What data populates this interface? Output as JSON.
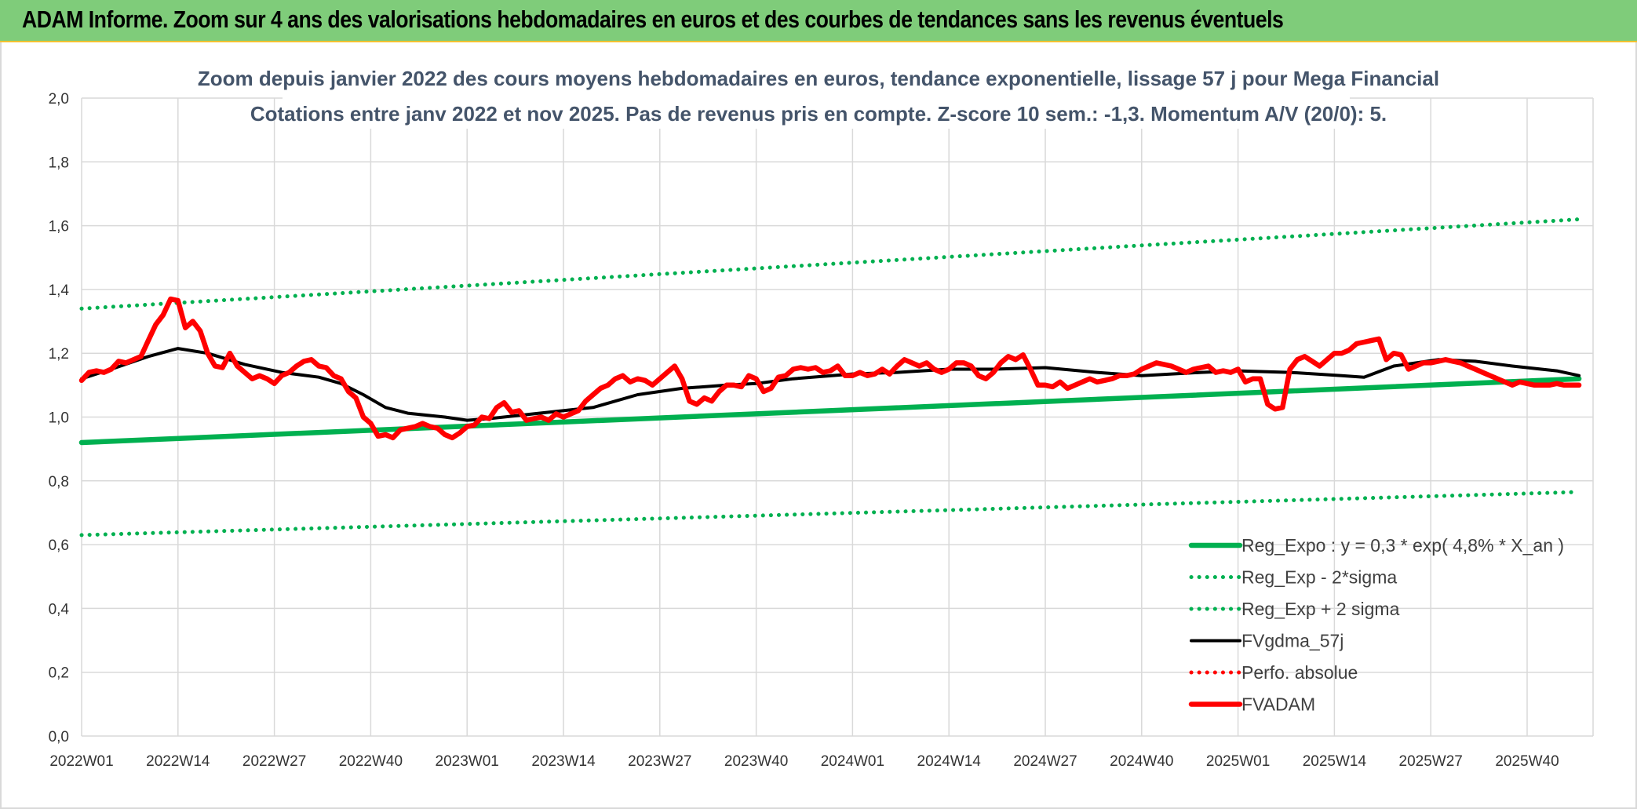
{
  "header": {
    "title": "ADAM Informe. Zoom sur 4 ans des valorisations hebdomadaires en euros et des courbes de tendances sans les revenus éventuels"
  },
  "chart_data": {
    "type": "line",
    "title": "Zoom depuis janvier 2022 des cours moyens hebdomadaires en euros, tendance exponentielle, lissage 57 j pour Mega Financial",
    "subtitle": "Cotations entre janv 2022 et nov 2025. Pas de revenus pris en compte. Z-score 10 sem.: -1,3. Momentum A/V (20/0): 5.",
    "xlabel": "",
    "ylabel": "",
    "ylim": [
      0,
      2
    ],
    "y_ticks": [
      "0,0",
      "0,2",
      "0,4",
      "0,6",
      "0,8",
      "1,0",
      "1,2",
      "1,4",
      "1,6",
      "1,8",
      "2,0"
    ],
    "x_ticks": [
      "2022W01",
      "2022W14",
      "2022W27",
      "2022W40",
      "2023W01",
      "2023W14",
      "2023W27",
      "2023W40",
      "2024W01",
      "2024W14",
      "2024W27",
      "2024W40",
      "2025W01",
      "2025W14",
      "2025W27",
      "2025W40"
    ],
    "x_range": [
      "2022W01",
      "2025W47"
    ],
    "grid": true,
    "legend_position": "bottom-right",
    "series": [
      {
        "name": "Reg_Expo : y = 0,3 * exp( 4,8% *  X_an )",
        "color": "#00b050",
        "style": "solid-thick",
        "points": [
          [
            "2022W01",
            0.92
          ],
          [
            "2025W47",
            1.12
          ]
        ]
      },
      {
        "name": "Reg_Exp - 2*sigma",
        "color": "#00b050",
        "style": "dotted",
        "points": [
          [
            "2022W01",
            0.63
          ],
          [
            "2025W47",
            0.765
          ]
        ]
      },
      {
        "name": "Reg_Exp + 2 sigma",
        "color": "#00b050",
        "style": "dotted",
        "points": [
          [
            "2022W01",
            1.34
          ],
          [
            "2025W47",
            1.62
          ]
        ]
      },
      {
        "name": "FVgdma_57j",
        "color": "#000000",
        "style": "solid",
        "points": [
          [
            "2022W01",
            1.12
          ],
          [
            "2022W05",
            1.15
          ],
          [
            "2022W10",
            1.19
          ],
          [
            "2022W14",
            1.215
          ],
          [
            "2022W18",
            1.2
          ],
          [
            "2022W23",
            1.165
          ],
          [
            "2022W28",
            1.14
          ],
          [
            "2022W33",
            1.125
          ],
          [
            "2022W36",
            1.105
          ],
          [
            "2022W39",
            1.07
          ],
          [
            "2022W42",
            1.03
          ],
          [
            "2022W45",
            1.012
          ],
          [
            "2022W50",
            1.0
          ],
          [
            "2023W01",
            0.99
          ],
          [
            "2023W04",
            0.995
          ],
          [
            "2023W10",
            1.01
          ],
          [
            "2023W18",
            1.03
          ],
          [
            "2023W24",
            1.07
          ],
          [
            "2023W30",
            1.09
          ],
          [
            "2023W36",
            1.1
          ],
          [
            "2023W40",
            1.105
          ],
          [
            "2023W45",
            1.12
          ],
          [
            "2024W01",
            1.135
          ],
          [
            "2024W07",
            1.14
          ],
          [
            "2024W14",
            1.15
          ],
          [
            "2024W20",
            1.15
          ],
          [
            "2024W27",
            1.155
          ],
          [
            "2024W34",
            1.14
          ],
          [
            "2024W40",
            1.13
          ],
          [
            "2024W48",
            1.14
          ],
          [
            "2025W01",
            1.145
          ],
          [
            "2025W08",
            1.14
          ],
          [
            "2025W15",
            1.13
          ],
          [
            "2025W18",
            1.125
          ],
          [
            "2025W22",
            1.16
          ],
          [
            "2025W28",
            1.18
          ],
          [
            "2025W33",
            1.175
          ],
          [
            "2025W38",
            1.16
          ],
          [
            "2025W44",
            1.145
          ],
          [
            "2025W47",
            1.13
          ]
        ]
      },
      {
        "name": "Perfo. absolue",
        "color": "#ff0000",
        "style": "dotted",
        "points": []
      },
      {
        "name": "FVADAM",
        "color": "#ff0000",
        "style": "solid-thick",
        "points": [
          [
            "2022W01",
            1.115
          ],
          [
            "2022W02",
            1.14
          ],
          [
            "2022W03",
            1.145
          ],
          [
            "2022W04",
            1.14
          ],
          [
            "2022W05",
            1.15
          ],
          [
            "2022W06",
            1.175
          ],
          [
            "2022W07",
            1.17
          ],
          [
            "2022W08",
            1.18
          ],
          [
            "2022W09",
            1.19
          ],
          [
            "2022W10",
            1.24
          ],
          [
            "2022W11",
            1.29
          ],
          [
            "2022W12",
            1.32
          ],
          [
            "2022W13",
            1.37
          ],
          [
            "2022W14",
            1.365
          ],
          [
            "2022W15",
            1.28
          ],
          [
            "2022W16",
            1.3
          ],
          [
            "2022W17",
            1.27
          ],
          [
            "2022W18",
            1.2
          ],
          [
            "2022W19",
            1.16
          ],
          [
            "2022W20",
            1.155
          ],
          [
            "2022W21",
            1.2
          ],
          [
            "2022W22",
            1.16
          ],
          [
            "2022W23",
            1.14
          ],
          [
            "2022W24",
            1.12
          ],
          [
            "2022W25",
            1.13
          ],
          [
            "2022W26",
            1.12
          ],
          [
            "2022W27",
            1.105
          ],
          [
            "2022W28",
            1.13
          ],
          [
            "2022W29",
            1.14
          ],
          [
            "2022W30",
            1.16
          ],
          [
            "2022W31",
            1.175
          ],
          [
            "2022W32",
            1.18
          ],
          [
            "2022W33",
            1.16
          ],
          [
            "2022W34",
            1.155
          ],
          [
            "2022W35",
            1.13
          ],
          [
            "2022W36",
            1.12
          ],
          [
            "2022W37",
            1.08
          ],
          [
            "2022W38",
            1.06
          ],
          [
            "2022W39",
            1.0
          ],
          [
            "2022W40",
            0.98
          ],
          [
            "2022W41",
            0.94
          ],
          [
            "2022W42",
            0.945
          ],
          [
            "2022W43",
            0.935
          ],
          [
            "2022W44",
            0.96
          ],
          [
            "2022W45",
            0.965
          ],
          [
            "2022W46",
            0.97
          ],
          [
            "2022W47",
            0.98
          ],
          [
            "2022W48",
            0.97
          ],
          [
            "2022W49",
            0.965
          ],
          [
            "2022W50",
            0.945
          ],
          [
            "2022W51",
            0.935
          ],
          [
            "2022W52",
            0.95
          ],
          [
            "2023W01",
            0.97
          ],
          [
            "2023W02",
            0.975
          ],
          [
            "2023W03",
            1.0
          ],
          [
            "2023W04",
            0.995
          ],
          [
            "2023W05",
            1.03
          ],
          [
            "2023W06",
            1.045
          ],
          [
            "2023W07",
            1.015
          ],
          [
            "2023W08",
            1.02
          ],
          [
            "2023W09",
            0.99
          ],
          [
            "2023W10",
            0.995
          ],
          [
            "2023W11",
            1.0
          ],
          [
            "2023W12",
            0.99
          ],
          [
            "2023W13",
            1.01
          ],
          [
            "2023W14",
            1.0
          ],
          [
            "2023W15",
            1.01
          ],
          [
            "2023W16",
            1.02
          ],
          [
            "2023W17",
            1.05
          ],
          [
            "2023W18",
            1.07
          ],
          [
            "2023W19",
            1.09
          ],
          [
            "2023W20",
            1.1
          ],
          [
            "2023W21",
            1.12
          ],
          [
            "2023W22",
            1.13
          ],
          [
            "2023W23",
            1.11
          ],
          [
            "2023W24",
            1.12
          ],
          [
            "2023W25",
            1.115
          ],
          [
            "2023W26",
            1.1
          ],
          [
            "2023W27",
            1.12
          ],
          [
            "2023W28",
            1.14
          ],
          [
            "2023W29",
            1.16
          ],
          [
            "2023W30",
            1.12
          ],
          [
            "2023W31",
            1.05
          ],
          [
            "2023W32",
            1.04
          ],
          [
            "2023W33",
            1.06
          ],
          [
            "2023W34",
            1.05
          ],
          [
            "2023W35",
            1.08
          ],
          [
            "2023W36",
            1.1
          ],
          [
            "2023W37",
            1.1
          ],
          [
            "2023W38",
            1.095
          ],
          [
            "2023W39",
            1.13
          ],
          [
            "2023W40",
            1.12
          ],
          [
            "2023W41",
            1.08
          ],
          [
            "2023W42",
            1.09
          ],
          [
            "2023W43",
            1.125
          ],
          [
            "2023W44",
            1.13
          ],
          [
            "2023W45",
            1.15
          ],
          [
            "2023W46",
            1.155
          ],
          [
            "2023W47",
            1.15
          ],
          [
            "2023W48",
            1.155
          ],
          [
            "2023W49",
            1.14
          ],
          [
            "2023W50",
            1.145
          ],
          [
            "2023W51",
            1.16
          ],
          [
            "2023W52",
            1.13
          ],
          [
            "2024W01",
            1.13
          ],
          [
            "2024W02",
            1.14
          ],
          [
            "2024W03",
            1.13
          ],
          [
            "2024W04",
            1.135
          ],
          [
            "2024W05",
            1.15
          ],
          [
            "2024W06",
            1.135
          ],
          [
            "2024W07",
            1.16
          ],
          [
            "2024W08",
            1.18
          ],
          [
            "2024W09",
            1.17
          ],
          [
            "2024W10",
            1.16
          ],
          [
            "2024W11",
            1.17
          ],
          [
            "2024W12",
            1.15
          ],
          [
            "2024W13",
            1.14
          ],
          [
            "2024W14",
            1.15
          ],
          [
            "2024W15",
            1.17
          ],
          [
            "2024W16",
            1.17
          ],
          [
            "2024W17",
            1.16
          ],
          [
            "2024W18",
            1.13
          ],
          [
            "2024W19",
            1.12
          ],
          [
            "2024W20",
            1.14
          ],
          [
            "2024W21",
            1.17
          ],
          [
            "2024W22",
            1.19
          ],
          [
            "2024W23",
            1.18
          ],
          [
            "2024W24",
            1.195
          ],
          [
            "2024W25",
            1.15
          ],
          [
            "2024W26",
            1.1
          ],
          [
            "2024W27",
            1.1
          ],
          [
            "2024W28",
            1.095
          ],
          [
            "2024W29",
            1.11
          ],
          [
            "2024W30",
            1.09
          ],
          [
            "2024W31",
            1.1
          ],
          [
            "2024W32",
            1.11
          ],
          [
            "2024W33",
            1.12
          ],
          [
            "2024W34",
            1.11
          ],
          [
            "2024W35",
            1.115
          ],
          [
            "2024W36",
            1.12
          ],
          [
            "2024W37",
            1.13
          ],
          [
            "2024W38",
            1.13
          ],
          [
            "2024W39",
            1.135
          ],
          [
            "2024W40",
            1.15
          ],
          [
            "2024W41",
            1.16
          ],
          [
            "2024W42",
            1.17
          ],
          [
            "2024W43",
            1.165
          ],
          [
            "2024W44",
            1.16
          ],
          [
            "2024W45",
            1.15
          ],
          [
            "2024W46",
            1.14
          ],
          [
            "2024W47",
            1.15
          ],
          [
            "2024W48",
            1.155
          ],
          [
            "2024W49",
            1.16
          ],
          [
            "2024W50",
            1.14
          ],
          [
            "2024W51",
            1.145
          ],
          [
            "2024W52",
            1.14
          ],
          [
            "2025W01",
            1.15
          ],
          [
            "2025W02",
            1.11
          ],
          [
            "2025W03",
            1.12
          ],
          [
            "2025W04",
            1.12
          ],
          [
            "2025W05",
            1.04
          ],
          [
            "2025W06",
            1.025
          ],
          [
            "2025W07",
            1.03
          ],
          [
            "2025W08",
            1.15
          ],
          [
            "2025W09",
            1.18
          ],
          [
            "2025W10",
            1.19
          ],
          [
            "2025W11",
            1.175
          ],
          [
            "2025W12",
            1.16
          ],
          [
            "2025W13",
            1.18
          ],
          [
            "2025W14",
            1.2
          ],
          [
            "2025W15",
            1.2
          ],
          [
            "2025W16",
            1.21
          ],
          [
            "2025W17",
            1.23
          ],
          [
            "2025W18",
            1.235
          ],
          [
            "2025W19",
            1.24
          ],
          [
            "2025W20",
            1.245
          ],
          [
            "2025W21",
            1.18
          ],
          [
            "2025W22",
            1.2
          ],
          [
            "2025W23",
            1.195
          ],
          [
            "2025W24",
            1.15
          ],
          [
            "2025W25",
            1.16
          ],
          [
            "2025W26",
            1.17
          ],
          [
            "2025W27",
            1.17
          ],
          [
            "2025W28",
            1.175
          ],
          [
            "2025W29",
            1.18
          ],
          [
            "2025W30",
            1.175
          ],
          [
            "2025W31",
            1.17
          ],
          [
            "2025W32",
            1.16
          ],
          [
            "2025W33",
            1.15
          ],
          [
            "2025W34",
            1.14
          ],
          [
            "2025W35",
            1.13
          ],
          [
            "2025W36",
            1.12
          ],
          [
            "2025W37",
            1.11
          ],
          [
            "2025W38",
            1.1
          ],
          [
            "2025W39",
            1.11
          ],
          [
            "2025W40",
            1.105
          ],
          [
            "2025W41",
            1.1
          ],
          [
            "2025W42",
            1.1
          ],
          [
            "2025W43",
            1.1
          ],
          [
            "2025W44",
            1.105
          ],
          [
            "2025W45",
            1.1
          ],
          [
            "2025W46",
            1.1
          ],
          [
            "2025W47",
            1.1
          ]
        ]
      }
    ]
  }
}
